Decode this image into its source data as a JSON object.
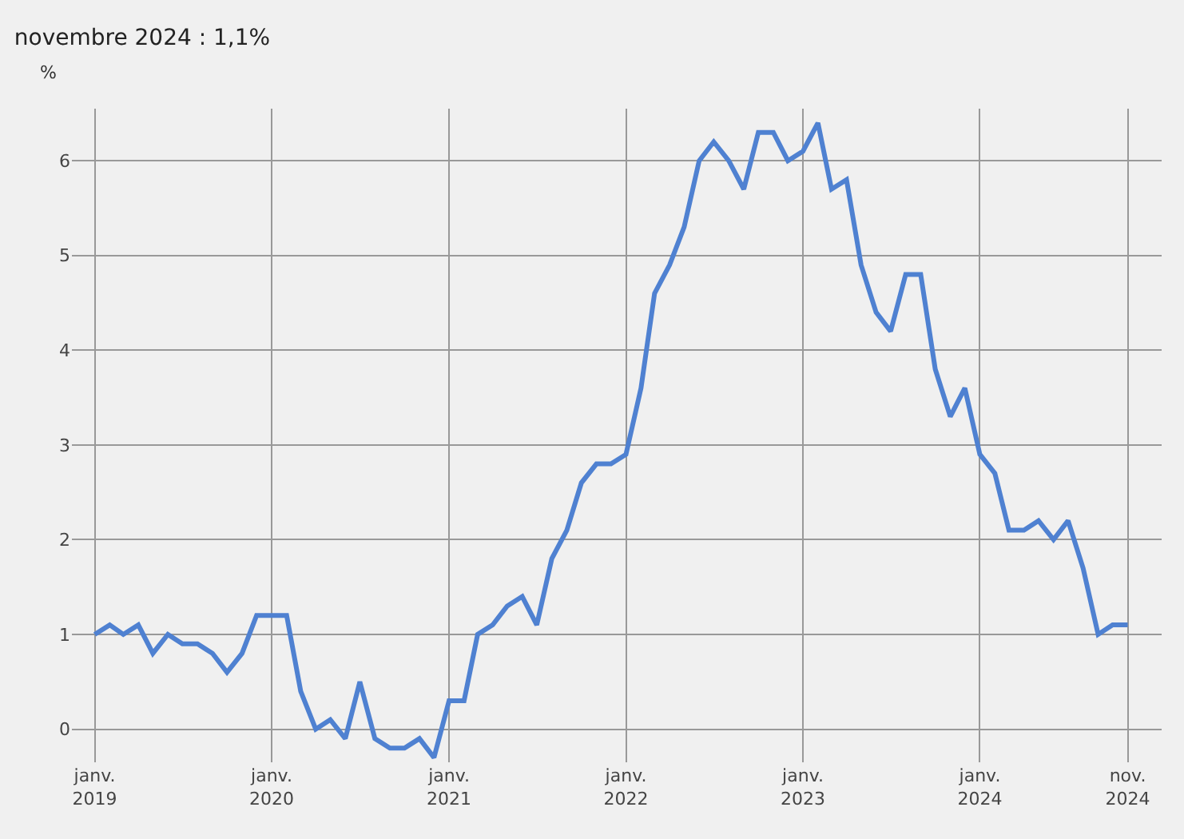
{
  "chart_data": {
    "type": "line",
    "subtitle": "novembre 2024 : 1,1%",
    "ylabel": "%",
    "x": [
      "2019-01",
      "2019-02",
      "2019-03",
      "2019-04",
      "2019-05",
      "2019-06",
      "2019-07",
      "2019-08",
      "2019-09",
      "2019-10",
      "2019-11",
      "2019-12",
      "2020-01",
      "2020-02",
      "2020-03",
      "2020-04",
      "2020-05",
      "2020-06",
      "2020-07",
      "2020-08",
      "2020-09",
      "2020-10",
      "2020-11",
      "2020-12",
      "2021-01",
      "2021-02",
      "2021-03",
      "2021-04",
      "2021-05",
      "2021-06",
      "2021-07",
      "2021-08",
      "2021-09",
      "2021-10",
      "2021-11",
      "2021-12",
      "2022-01",
      "2022-02",
      "2022-03",
      "2022-04",
      "2022-05",
      "2022-06",
      "2022-07",
      "2022-08",
      "2022-09",
      "2022-10",
      "2022-11",
      "2022-12",
      "2023-01",
      "2023-02",
      "2023-03",
      "2023-04",
      "2023-05",
      "2023-06",
      "2023-07",
      "2023-08",
      "2023-09",
      "2023-10",
      "2023-11",
      "2023-12",
      "2024-01",
      "2024-02",
      "2024-03",
      "2024-04",
      "2024-05",
      "2024-06",
      "2024-07",
      "2024-08",
      "2024-09",
      "2024-10",
      "2024-11"
    ],
    "series": [
      {
        "color": "#4f81d1",
        "values": [
          1.0,
          1.1,
          1.0,
          1.1,
          0.8,
          1.0,
          0.9,
          0.9,
          0.8,
          0.6,
          0.8,
          1.2,
          1.2,
          1.2,
          0.4,
          0.0,
          0.1,
          -0.1,
          0.5,
          -0.1,
          -0.2,
          -0.2,
          -0.1,
          -0.3,
          0.3,
          0.3,
          1.0,
          1.1,
          1.3,
          1.4,
          1.1,
          1.8,
          2.1,
          2.6,
          2.8,
          2.8,
          2.9,
          3.6,
          4.6,
          4.9,
          5.3,
          6.0,
          6.2,
          6.0,
          5.7,
          6.3,
          6.3,
          6.0,
          6.1,
          6.4,
          5.7,
          5.8,
          4.9,
          4.4,
          4.2,
          4.8,
          4.8,
          3.8,
          3.3,
          3.6,
          2.9,
          2.7,
          2.1,
          2.1,
          2.2,
          2.0,
          2.2,
          1.7,
          1.0,
          1.1,
          1.1
        ]
      }
    ],
    "xlim": [
      "2018-11-15",
      "2025-01-10"
    ],
    "xticks": [
      {
        "value": "2019-01",
        "label": "janv.\n2019"
      },
      {
        "value": "2020-01",
        "label": "janv.\n2020"
      },
      {
        "value": "2021-01",
        "label": "janv.\n2021"
      },
      {
        "value": "2022-01",
        "label": "janv.\n2022"
      },
      {
        "value": "2023-01",
        "label": "janv.\n2023"
      },
      {
        "value": "2024-01",
        "label": "janv.\n2024"
      },
      {
        "value": "2024-11",
        "label": "nov.\n2024"
      }
    ],
    "ylim": [
      -0.35,
      6.55
    ],
    "yticks": [
      0,
      1,
      2,
      3,
      4,
      5,
      6
    ],
    "grid": true,
    "marker": "none",
    "line_style": "solid"
  }
}
